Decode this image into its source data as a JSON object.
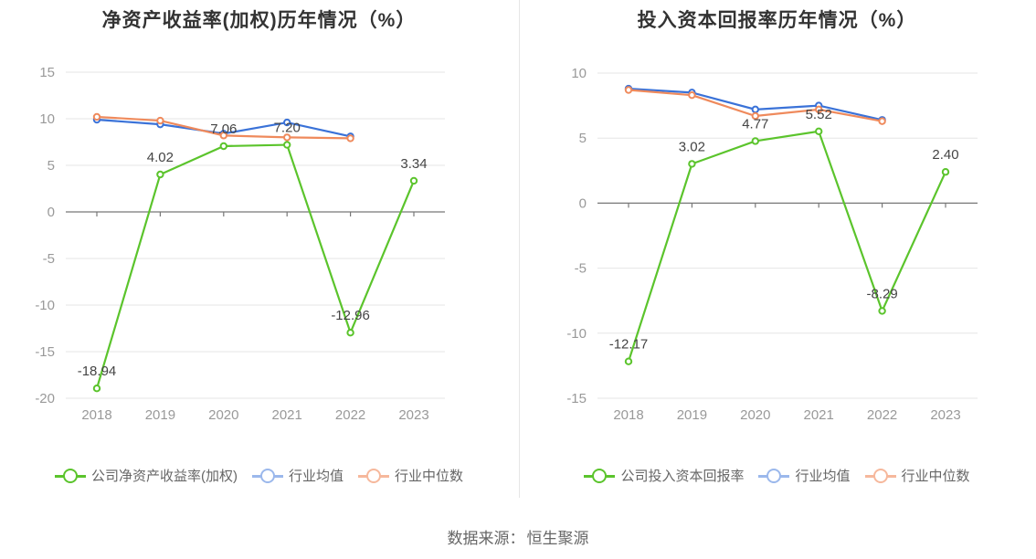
{
  "colors": {
    "company": "#5bc42c",
    "avg": "#3a72d8",
    "median": "#ef8a5c",
    "grid": "#e6e6e6",
    "axis": "#999999"
  },
  "source": {
    "label": "数据来源：",
    "value": "恒生聚源"
  },
  "chart_data": [
    {
      "type": "line",
      "title": "净资产收益率(加权)历年情况（%）",
      "categories": [
        "2018",
        "2019",
        "2020",
        "2021",
        "2022",
        "2023"
      ],
      "ylim": [
        -20,
        15
      ],
      "yticks": [
        15,
        10,
        5,
        0,
        -5,
        -10,
        -15,
        -20
      ],
      "grid": true,
      "legend_position": "bottom",
      "series": [
        {
          "name": "公司净资产收益率(加权)",
          "key": "company",
          "values": [
            -18.94,
            4.02,
            7.06,
            7.2,
            -12.96,
            3.34
          ],
          "labels": [
            "-18.94",
            "4.02",
            "7.06",
            "7.20",
            "-12.96",
            "3.34"
          ]
        },
        {
          "name": "行业均值",
          "key": "avg",
          "values": [
            9.9,
            9.4,
            8.4,
            9.6,
            8.1,
            null
          ]
        },
        {
          "name": "行业中位数",
          "key": "median",
          "values": [
            10.2,
            9.8,
            8.2,
            8.0,
            7.9,
            null
          ]
        }
      ]
    },
    {
      "type": "line",
      "title": "投入资本回报率历年情况（%）",
      "categories": [
        "2018",
        "2019",
        "2020",
        "2021",
        "2022",
        "2023"
      ],
      "ylim": [
        -15,
        10
      ],
      "yticks": [
        10,
        5,
        0,
        -5,
        -10,
        -15
      ],
      "grid": true,
      "legend_position": "bottom",
      "series": [
        {
          "name": "公司投入资本回报率",
          "key": "company",
          "values": [
            -12.17,
            3.02,
            4.77,
            5.52,
            -8.29,
            2.4
          ],
          "labels": [
            "-12.17",
            "3.02",
            "4.77",
            "5.52",
            "-8.29",
            "2.40"
          ]
        },
        {
          "name": "行业均值",
          "key": "avg",
          "values": [
            8.8,
            8.5,
            7.2,
            7.5,
            6.4,
            null
          ]
        },
        {
          "name": "行业中位数",
          "key": "median",
          "values": [
            8.7,
            8.3,
            6.7,
            7.2,
            6.3,
            null
          ]
        }
      ]
    }
  ]
}
